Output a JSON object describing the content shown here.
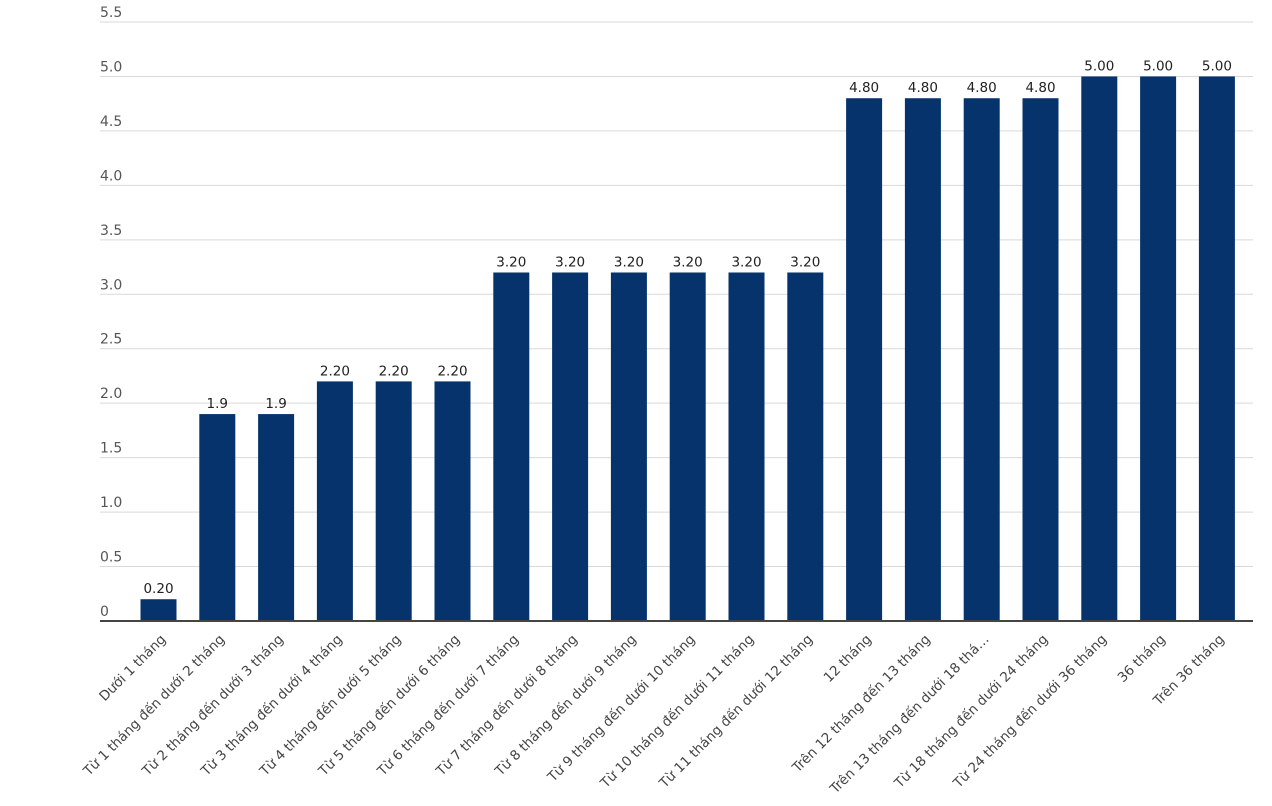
{
  "chart_data": {
    "type": "bar",
    "title": "",
    "xlabel": "",
    "ylabel": "",
    "ylim": [
      0,
      5.5
    ],
    "yticks": [
      "0",
      "0.5",
      "1.0",
      "1.5",
      "2.0",
      "2.5",
      "3.0",
      "3.5",
      "4.0",
      "4.5",
      "5.0",
      "5.5"
    ],
    "grid": true,
    "bar_color": "#06336b",
    "categories": [
      "Dưới 1 tháng",
      "Từ 1 tháng đến dưới 2 tháng",
      "Từ 2 tháng đến dưới 3 tháng",
      "Từ 3 tháng đến dưới 4 tháng",
      "Từ 4 tháng đến dưới 5 tháng",
      "Từ 5 tháng đến dưới 6 tháng",
      "Từ 6 tháng đến dưới 7 tháng",
      "Từ 7 tháng đến dưới 8 tháng",
      "Từ 8 tháng đến dưới 9 tháng",
      "Từ 9 tháng đến dưới 10 tháng",
      "Từ 10 tháng đến dưới 11 tháng",
      "Từ 11 tháng đến dưới 12 tháng",
      "12 tháng",
      "Trên 12 tháng đến 13 tháng",
      "Trên 13 tháng đến dưới 18 thá…",
      "Từ 18 tháng đến dưới 24 tháng",
      "Từ 24 tháng đến dưới 36 tháng",
      "36 tháng",
      "Trên 36 tháng"
    ],
    "values": [
      0.2,
      1.9,
      1.9,
      2.2,
      2.2,
      2.2,
      3.2,
      3.2,
      3.2,
      3.2,
      3.2,
      3.2,
      4.8,
      4.8,
      4.8,
      4.8,
      5.0,
      5.0,
      5.0
    ],
    "value_labels": [
      "0.20",
      "1.9",
      "1.9",
      "2.20",
      "2.20",
      "2.20",
      "3.20",
      "3.20",
      "3.20",
      "3.20",
      "3.20",
      "3.20",
      "4.80",
      "4.80",
      "4.80",
      "4.80",
      "5.00",
      "5.00",
      "5.00"
    ]
  }
}
